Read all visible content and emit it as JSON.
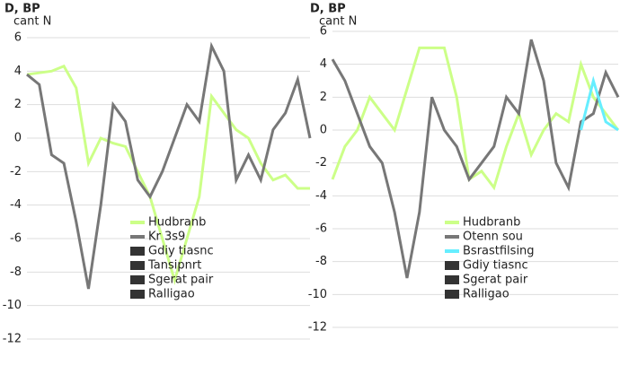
{
  "chart_data": [
    {
      "type": "line",
      "title": "D, BP",
      "y_label": "cant N",
      "categories": [
        null,
        null,
        null,
        null,
        null,
        null,
        null,
        null,
        null,
        null,
        null,
        null,
        null,
        null,
        null,
        null,
        null,
        null,
        null,
        null,
        null,
        null,
        null,
        null
      ],
      "series": [
        {
          "name": "Hudbranb",
          "color": "#ccff88",
          "values": [
            3.8,
            3.9,
            4.0,
            4.3,
            3.0,
            -1.5,
            0,
            -0.3,
            -0.5,
            -2,
            -3.5,
            -6,
            -8.5,
            -6,
            -3.5,
            2.5,
            1.5,
            0.5,
            0,
            -1.5,
            -2.5,
            -2.2,
            -3,
            -3
          ]
        },
        {
          "name": "Kr 3s9",
          "color": "#777777",
          "values": [
            3.8,
            3.2,
            -1,
            -1.5,
            -5,
            -9,
            -4,
            2,
            1,
            -2.5,
            -3.5,
            -2,
            0,
            2,
            1,
            5.5,
            4,
            -2.5,
            -1,
            -2.5,
            0.5,
            1.5,
            3.5,
            0
          ]
        }
      ],
      "legend_entries": [
        "Gdiy tiasnc",
        "Tansipnrt",
        "Sgerat pair",
        "Ralligao"
      ],
      "ylim": [
        -12,
        6
      ],
      "yticks": [
        6,
        4,
        2,
        0,
        -2,
        -4,
        -6,
        -8,
        -10,
        -12
      ],
      "grid": true
    },
    {
      "type": "line",
      "title": "D, BP",
      "y_label": "cant N",
      "categories": [
        null,
        null,
        null,
        null,
        null,
        null,
        null,
        null,
        null,
        null,
        null,
        null,
        null,
        null,
        null,
        null,
        null,
        null,
        null,
        null,
        null,
        null,
        null,
        null
      ],
      "series": [
        {
          "name": "Hudbranb",
          "color": "#ccff88",
          "values": [
            -3,
            -1,
            0,
            2,
            1,
            0,
            2.5,
            5,
            5,
            5,
            2,
            -3,
            -2.5,
            -3.5,
            -1,
            1,
            -1.5,
            0,
            1,
            0.5,
            4,
            2,
            1,
            0
          ]
        },
        {
          "name": "Otenn sou",
          "color": "#777777",
          "values": [
            4.3,
            3,
            1,
            -1,
            -2,
            -5,
            -9,
            -5,
            2,
            0,
            -1,
            -3,
            -2,
            -1,
            2,
            1,
            5.5,
            3,
            -2,
            -3.5,
            0.5,
            1,
            3.5,
            2
          ]
        },
        {
          "name": "Bsrastfilsing",
          "color": "#66eeff",
          "values": [
            null,
            null,
            null,
            null,
            null,
            null,
            null,
            null,
            null,
            null,
            null,
            null,
            null,
            null,
            null,
            null,
            null,
            null,
            null,
            null,
            0,
            3,
            0.5,
            0
          ]
        }
      ],
      "legend_entries": [
        "Gdiy tiasnc",
        "Sgerat pair",
        "Ralligao"
      ],
      "ylim": [
        -12,
        6
      ],
      "yticks": [
        6,
        4,
        2,
        0,
        -2,
        -4,
        -6,
        -8,
        -10,
        -12
      ],
      "grid": true
    }
  ]
}
